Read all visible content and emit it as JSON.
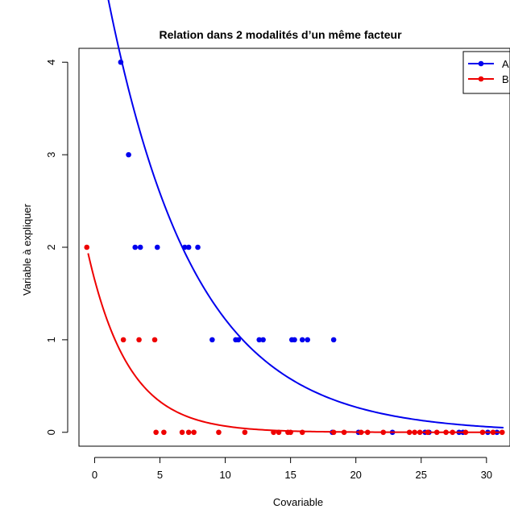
{
  "chart_data": {
    "type": "scatter",
    "title": "Relation dans 2 modalités d’un même facteur",
    "xlabel": "Covariable",
    "ylabel": "Variable à expliquer",
    "xlim": [
      -1.2,
      31.8
    ],
    "ylim": [
      -0.15,
      4.15
    ],
    "x_ticks": [
      0,
      5,
      10,
      15,
      20,
      25,
      30
    ],
    "y_ticks": [
      0,
      1,
      2,
      3,
      4
    ],
    "grid": false,
    "legend_position": "top-right",
    "series": [
      {
        "name": "A",
        "color": "#0000ee",
        "points": [
          [
            2.0,
            4
          ],
          [
            2.6,
            3
          ],
          [
            3.1,
            2
          ],
          [
            3.5,
            2
          ],
          [
            4.8,
            2
          ],
          [
            6.9,
            2
          ],
          [
            7.2,
            2
          ],
          [
            7.9,
            2
          ],
          [
            9.0,
            1
          ],
          [
            10.8,
            1
          ],
          [
            11.0,
            1
          ],
          [
            12.6,
            1
          ],
          [
            12.9,
            1
          ],
          [
            15.1,
            1
          ],
          [
            15.3,
            1
          ],
          [
            15.9,
            1
          ],
          [
            16.3,
            1
          ],
          [
            18.3,
            1
          ],
          [
            18.2,
            0
          ],
          [
            20.2,
            0
          ],
          [
            22.8,
            0
          ],
          [
            25.3,
            0
          ],
          [
            25.6,
            0
          ],
          [
            27.9,
            0
          ],
          [
            28.2,
            0
          ],
          [
            30.1,
            0
          ],
          [
            30.8,
            0
          ]
        ],
        "curve": {
          "a": 1.7,
          "b": 0.15,
          "x_range": [
            0.6,
            31.3
          ]
        }
      },
      {
        "name": "B",
        "color": "#ee0000",
        "points": [
          [
            -0.6,
            2
          ],
          [
            2.2,
            1
          ],
          [
            3.4,
            1
          ],
          [
            4.6,
            1
          ],
          [
            4.7,
            0
          ],
          [
            5.3,
            0
          ],
          [
            6.7,
            0
          ],
          [
            7.2,
            0
          ],
          [
            7.6,
            0
          ],
          [
            9.5,
            0
          ],
          [
            11.5,
            0
          ],
          [
            13.7,
            0
          ],
          [
            14.1,
            0
          ],
          [
            14.8,
            0
          ],
          [
            15.0,
            0
          ],
          [
            15.9,
            0
          ],
          [
            18.3,
            0
          ],
          [
            19.1,
            0
          ],
          [
            20.4,
            0
          ],
          [
            20.9,
            0
          ],
          [
            22.1,
            0
          ],
          [
            24.1,
            0
          ],
          [
            24.5,
            0
          ],
          [
            24.9,
            0
          ],
          [
            25.5,
            0
          ],
          [
            26.2,
            0
          ],
          [
            26.9,
            0
          ],
          [
            27.4,
            0
          ],
          [
            28.4,
            0
          ],
          [
            29.7,
            0
          ],
          [
            30.5,
            0
          ],
          [
            31.2,
            0
          ]
        ],
        "curve": {
          "a": 0.5,
          "b": 0.32,
          "x_range": [
            -0.5,
            31.3
          ]
        }
      }
    ]
  }
}
